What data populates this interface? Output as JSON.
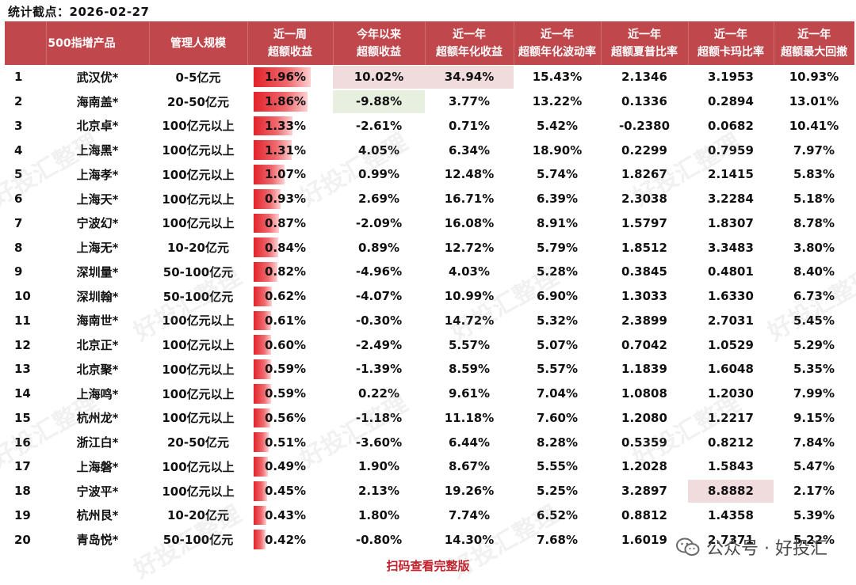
{
  "stat_date": "统计截点：2026-02-27",
  "headers": [
    {
      "l1": "500指增产品",
      "l2": ""
    },
    {
      "l1": "管理人规模",
      "l2": ""
    },
    {
      "l1": "近一周",
      "l2": "超额收益"
    },
    {
      "l1": "今年以来",
      "l2": "超额收益"
    },
    {
      "l1": "近一年",
      "l2": "超额年化收益"
    },
    {
      "l1": "近一年",
      "l2": "超额年化波动率"
    },
    {
      "l1": "近一年",
      "l2": "超额夏普比率"
    },
    {
      "l1": "近一年",
      "l2": "超额卡玛比率"
    },
    {
      "l1": "近一年",
      "l2": "超额最大回撤"
    }
  ],
  "rows": [
    {
      "rank": "1",
      "product": "武汉优*",
      "scale": "0-5亿元",
      "week": "1.96%",
      "week_pct": 1.96,
      "ytd": "10.02%",
      "ann_ret": "34.94%",
      "ann_vol": "15.43%",
      "sharpe": "2.1346",
      "calmar": "3.1953",
      "mdd": "10.93%"
    },
    {
      "rank": "2",
      "product": "海南盖*",
      "scale": "20-50亿元",
      "week": "1.86%",
      "week_pct": 1.86,
      "ytd": "-9.88%",
      "ann_ret": "3.77%",
      "ann_vol": "13.22%",
      "sharpe": "0.1336",
      "calmar": "0.2894",
      "mdd": "13.01%"
    },
    {
      "rank": "3",
      "product": "北京卓*",
      "scale": "100亿元以上",
      "week": "1.33%",
      "week_pct": 1.33,
      "ytd": "-2.61%",
      "ann_ret": "0.71%",
      "ann_vol": "5.42%",
      "sharpe": "-0.2380",
      "calmar": "0.0682",
      "mdd": "10.41%"
    },
    {
      "rank": "4",
      "product": "上海黑*",
      "scale": "100亿元以上",
      "week": "1.31%",
      "week_pct": 1.31,
      "ytd": "4.05%",
      "ann_ret": "6.34%",
      "ann_vol": "18.90%",
      "sharpe": "0.2299",
      "calmar": "0.7959",
      "mdd": "7.97%"
    },
    {
      "rank": "5",
      "product": "上海孝*",
      "scale": "100亿元以上",
      "week": "1.07%",
      "week_pct": 1.07,
      "ytd": "0.99%",
      "ann_ret": "12.48%",
      "ann_vol": "5.74%",
      "sharpe": "1.8267",
      "calmar": "2.1415",
      "mdd": "5.83%"
    },
    {
      "rank": "6",
      "product": "上海天*",
      "scale": "100亿元以上",
      "week": "0.93%",
      "week_pct": 0.93,
      "ytd": "2.69%",
      "ann_ret": "16.71%",
      "ann_vol": "6.39%",
      "sharpe": "2.3038",
      "calmar": "3.2284",
      "mdd": "5.18%"
    },
    {
      "rank": "7",
      "product": "宁波幻*",
      "scale": "100亿元以上",
      "week": "0.87%",
      "week_pct": 0.87,
      "ytd": "-2.09%",
      "ann_ret": "16.08%",
      "ann_vol": "8.91%",
      "sharpe": "1.5797",
      "calmar": "1.8307",
      "mdd": "8.78%"
    },
    {
      "rank": "8",
      "product": "上海无*",
      "scale": "10-20亿元",
      "week": "0.84%",
      "week_pct": 0.84,
      "ytd": "0.89%",
      "ann_ret": "12.72%",
      "ann_vol": "5.79%",
      "sharpe": "1.8512",
      "calmar": "3.3483",
      "mdd": "3.80%"
    },
    {
      "rank": "9",
      "product": "深圳量*",
      "scale": "50-100亿元",
      "week": "0.82%",
      "week_pct": 0.82,
      "ytd": "-4.96%",
      "ann_ret": "4.03%",
      "ann_vol": "5.28%",
      "sharpe": "0.3845",
      "calmar": "0.4801",
      "mdd": "8.40%"
    },
    {
      "rank": "10",
      "product": "深圳翰*",
      "scale": "50-100亿元",
      "week": "0.62%",
      "week_pct": 0.62,
      "ytd": "-4.07%",
      "ann_ret": "10.99%",
      "ann_vol": "6.90%",
      "sharpe": "1.3033",
      "calmar": "1.6330",
      "mdd": "6.73%"
    },
    {
      "rank": "11",
      "product": "海南世*",
      "scale": "100亿元以上",
      "week": "0.61%",
      "week_pct": 0.61,
      "ytd": "-0.30%",
      "ann_ret": "14.72%",
      "ann_vol": "5.32%",
      "sharpe": "2.3899",
      "calmar": "2.7031",
      "mdd": "5.45%"
    },
    {
      "rank": "12",
      "product": "北京正*",
      "scale": "100亿元以上",
      "week": "0.60%",
      "week_pct": 0.6,
      "ytd": "-2.49%",
      "ann_ret": "5.57%",
      "ann_vol": "5.07%",
      "sharpe": "0.7042",
      "calmar": "1.0529",
      "mdd": "5.29%"
    },
    {
      "rank": "13",
      "product": "北京聚*",
      "scale": "100亿元以上",
      "week": "0.59%",
      "week_pct": 0.59,
      "ytd": "-1.39%",
      "ann_ret": "8.59%",
      "ann_vol": "5.57%",
      "sharpe": "1.1839",
      "calmar": "1.6048",
      "mdd": "5.35%"
    },
    {
      "rank": "14",
      "product": "上海鸣*",
      "scale": "100亿元以上",
      "week": "0.59%",
      "week_pct": 0.59,
      "ytd": "0.22%",
      "ann_ret": "9.61%",
      "ann_vol": "7.04%",
      "sharpe": "1.0808",
      "calmar": "1.2030",
      "mdd": "7.99%"
    },
    {
      "rank": "15",
      "product": "杭州龙*",
      "scale": "100亿元以上",
      "week": "0.56%",
      "week_pct": 0.56,
      "ytd": "-1.18%",
      "ann_ret": "11.18%",
      "ann_vol": "7.60%",
      "sharpe": "1.2080",
      "calmar": "1.2217",
      "mdd": "9.15%"
    },
    {
      "rank": "16",
      "product": "浙江白*",
      "scale": "20-50亿元",
      "week": "0.51%",
      "week_pct": 0.51,
      "ytd": "-3.60%",
      "ann_ret": "6.44%",
      "ann_vol": "8.28%",
      "sharpe": "0.5359",
      "calmar": "0.8212",
      "mdd": "7.84%"
    },
    {
      "rank": "17",
      "product": "上海磐*",
      "scale": "100亿元以上",
      "week": "0.49%",
      "week_pct": 0.49,
      "ytd": "1.90%",
      "ann_ret": "8.67%",
      "ann_vol": "5.55%",
      "sharpe": "1.2028",
      "calmar": "1.5843",
      "mdd": "5.47%"
    },
    {
      "rank": "18",
      "product": "宁波平*",
      "scale": "100亿元以上",
      "week": "0.45%",
      "week_pct": 0.45,
      "ytd": "2.13%",
      "ann_ret": "19.26%",
      "ann_vol": "5.25%",
      "sharpe": "3.2897",
      "calmar": "8.8882",
      "mdd": "2.17%"
    },
    {
      "rank": "19",
      "product": "杭州艮*",
      "scale": "10-20亿元",
      "week": "0.43%",
      "week_pct": 0.43,
      "ytd": "1.80%",
      "ann_ret": "7.74%",
      "ann_vol": "6.52%",
      "sharpe": "0.8812",
      "calmar": "1.4358",
      "mdd": "5.39%"
    },
    {
      "rank": "20",
      "product": "青岛悦*",
      "scale": "50-100亿元",
      "week": "0.42%",
      "week_pct": 0.42,
      "ytd": "-0.80%",
      "ann_ret": "14.30%",
      "ann_vol": "7.68%",
      "sharpe": "1.6019",
      "calmar": "2.7371",
      "mdd": "5.22%"
    }
  ],
  "highlights": [
    {
      "row": 0,
      "col": "ytd",
      "color": "red"
    },
    {
      "row": 0,
      "col": "ann_ret",
      "color": "red"
    },
    {
      "row": 1,
      "col": "ytd",
      "color": "green"
    },
    {
      "row": 17,
      "col": "calmar",
      "color": "red"
    }
  ],
  "colors": {
    "header_bg": "#c0474c",
    "bar_red": "#e2222a",
    "highlight_red": "#f1dcdd",
    "highlight_green": "#e7f0df",
    "footer_red": "#c0212a"
  },
  "watermark": "好投汇整理",
  "footer": "扫码查看完整版",
  "brand": {
    "icon": "wechat-icon",
    "text": "公众号 · 好投汇"
  }
}
